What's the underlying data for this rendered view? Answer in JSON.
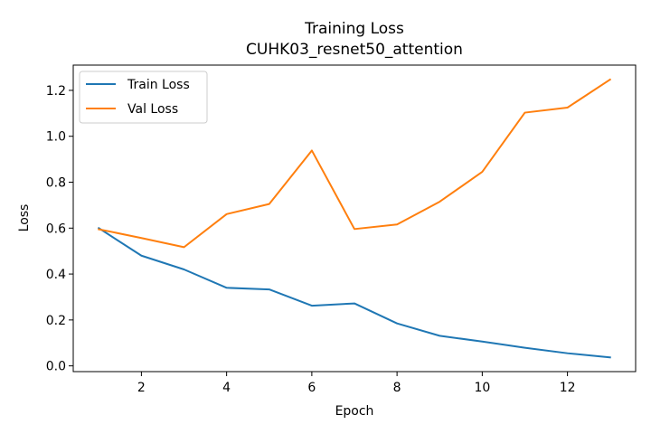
{
  "chart_data": {
    "type": "line",
    "title": "Training Loss",
    "subtitle": "CUHK03_resnet50_attention",
    "xlabel": "Epoch",
    "ylabel": "Loss",
    "xlim": [
      0.4,
      13.6
    ],
    "ylim": [
      -0.025,
      1.31
    ],
    "xticks": [
      2,
      4,
      6,
      8,
      10,
      12
    ],
    "yticks": [
      0.0,
      0.2,
      0.4,
      0.6,
      0.8,
      1.0,
      1.2
    ],
    "ytick_labels": [
      "0.0",
      "0.2",
      "0.4",
      "0.6",
      "0.8",
      "1.0",
      "1.2"
    ],
    "grid": false,
    "legend_position": "upper-left",
    "x": [
      1,
      2,
      3,
      4,
      5,
      6,
      7,
      8,
      9,
      10,
      11,
      12,
      13
    ],
    "series": [
      {
        "name": "Train Loss",
        "color": "#1f77b4",
        "values": [
          0.6,
          0.48,
          0.42,
          0.34,
          0.333,
          0.262,
          0.272,
          0.185,
          0.131,
          0.106,
          0.079,
          0.055,
          0.037
        ]
      },
      {
        "name": "Val Loss",
        "color": "#ff7f0e",
        "values": [
          0.595,
          0.557,
          0.517,
          0.661,
          0.705,
          0.938,
          0.596,
          0.616,
          0.715,
          0.845,
          1.103,
          1.125,
          1.247
        ]
      }
    ]
  }
}
